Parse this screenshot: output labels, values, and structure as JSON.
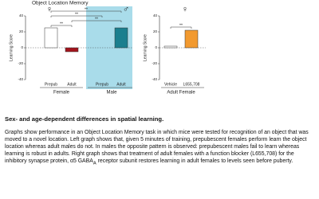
{
  "chart_data": [
    {
      "type": "bar",
      "title": "Object Location Memory",
      "y_label": "Learning Score",
      "categories": [
        "Prepub",
        "Adult",
        "Prepub",
        "Adult"
      ],
      "groups": [
        "Female",
        "Male"
      ],
      "group_symbols": [
        "♀",
        "♂"
      ],
      "values": [
        25,
        -5,
        0,
        25
      ],
      "colors": [
        "#ffffff",
        "#a3141c",
        "#ffffff",
        "#1b7f8e"
      ],
      "highlight_color": "#a9dcea",
      "ylim": [
        -40,
        40
      ],
      "yticks": [
        40,
        20,
        0,
        -20,
        -40
      ],
      "annotations": [
        "**",
        "**",
        "**",
        "**"
      ]
    },
    {
      "type": "bar",
      "y_label": "Learning Score",
      "categories": [
        "Vehicle",
        "L655,708"
      ],
      "groups": [
        "Adult Female"
      ],
      "group_symbols": [
        "♀"
      ],
      "values": [
        2,
        22
      ],
      "colors": [
        "#ffffff",
        "#f29a30"
      ],
      "ylim": [
        -40,
        40
      ],
      "yticks": [
        40,
        20,
        0,
        -20,
        -40
      ],
      "annotations": [
        "**"
      ]
    }
  ],
  "document": {
    "heading": "Sex- and age-dependent differences in spatial learning.",
    "paragraph": [
      "Graphs show performance in an Object Location Memory task in which mice were tested for recognition of an object that was moved to a novel location.  Left graph shows that, given 5 minutes of training, prepubescent females perform learn the object location whereas adult males do not. In males the opposite pattern is observed: prepubescent males fail to learn whereas learning is robust in adults. Right graph shows that treatment of adult females with a function blocker (L655,708)  for the inhibitory synapse protein, α5 GABA",
      "A",
      " receptor subunit restores learning in adult females to levels seen before puberty."
    ]
  }
}
